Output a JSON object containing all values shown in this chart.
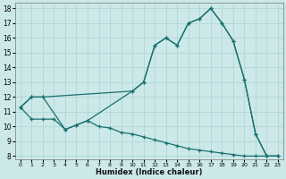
{
  "xlabel": "Humidex (Indice chaleur)",
  "bg_color": "#cce8e8",
  "grid_color": "#aad4d4",
  "line_color": "#1a7070",
  "xlim": [
    -0.5,
    23.5
  ],
  "ylim": [
    7.8,
    18.4
  ],
  "xtick_vals": [
    0,
    1,
    2,
    3,
    4,
    5,
    6,
    7,
    8,
    9,
    10,
    11,
    12,
    13,
    14,
    15,
    16,
    17,
    18,
    19,
    20,
    21,
    22,
    23
  ],
  "ytick_vals": [
    8,
    9,
    10,
    11,
    12,
    13,
    14,
    15,
    16,
    17,
    18
  ],
  "line1_x": [
    0,
    1,
    2,
    3,
    4,
    5,
    6,
    7,
    8,
    9,
    10,
    11,
    12,
    13,
    14,
    15,
    16,
    17,
    18,
    19,
    20,
    21,
    22,
    23
  ],
  "line1_y": [
    11.3,
    10.5,
    10.5,
    10.5,
    9.8,
    10.1,
    10.4,
    10.0,
    9.9,
    9.6,
    9.5,
    9.3,
    9.1,
    8.9,
    8.7,
    8.5,
    8.4,
    8.3,
    8.2,
    8.1,
    8.0,
    8.0,
    8.0,
    8.0
  ],
  "line2_x": [
    0,
    1,
    2,
    4,
    5,
    6,
    10,
    11,
    12,
    13,
    14,
    15,
    16,
    17,
    18,
    19,
    20,
    21,
    22,
    23
  ],
  "line2_y": [
    11.3,
    12.0,
    12.0,
    9.8,
    10.1,
    10.4,
    12.4,
    13.0,
    15.5,
    16.0,
    15.5,
    17.0,
    17.3,
    18.0,
    17.0,
    15.8,
    13.2,
    9.5,
    8.0,
    8.0
  ],
  "line3_x": [
    0,
    1,
    2,
    10,
    11,
    12,
    13,
    14,
    15,
    16,
    17,
    18,
    19,
    20,
    21,
    22,
    23
  ],
  "line3_y": [
    11.3,
    12.0,
    12.0,
    12.4,
    13.0,
    15.5,
    16.0,
    15.5,
    17.0,
    17.3,
    18.0,
    17.0,
    15.8,
    13.2,
    9.5,
    8.0,
    8.0
  ]
}
